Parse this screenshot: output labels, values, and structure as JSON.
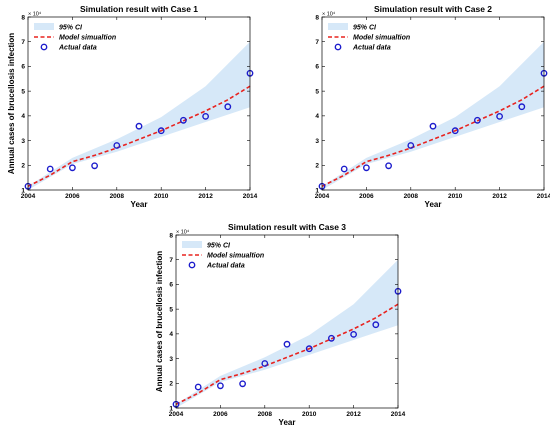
{
  "chart_data": [
    {
      "type": "line",
      "title": "Simulation result with Case 1",
      "xlabel": "Year",
      "ylabel": "Annual cases of brucellosis infection",
      "y_multiplier": "× 10⁴",
      "xlim": [
        2004,
        2014
      ],
      "ylim": [
        1,
        8
      ],
      "xticks": [
        "2004",
        "2006",
        "2008",
        "2010",
        "2012",
        "2014"
      ],
      "yticks": [
        "1",
        "2",
        "3",
        "4",
        "5",
        "6",
        "7",
        "8"
      ],
      "grid": false,
      "legend_position": "top-left",
      "series": [
        {
          "name": "95% CI",
          "kind": "band",
          "color": "#d6e8f8",
          "x": [
            2004,
            2006,
            2008,
            2010,
            2012,
            2014
          ],
          "lower": [
            1.0,
            2.05,
            2.55,
            3.15,
            3.75,
            4.35
          ],
          "upper": [
            1.15,
            2.3,
            3.05,
            3.95,
            5.2,
            7.0
          ]
        },
        {
          "name": "Model simualtion",
          "kind": "line",
          "color": "#e8231f",
          "x": [
            2004,
            2005,
            2006,
            2007,
            2008,
            2009,
            2010,
            2011,
            2012,
            2013,
            2014
          ],
          "y": [
            1.15,
            1.6,
            2.15,
            2.4,
            2.7,
            3.05,
            3.4,
            3.8,
            4.2,
            4.65,
            5.2
          ]
        },
        {
          "name": "Actual data",
          "kind": "scatter",
          "color": "#1c1ccc",
          "x": [
            2004,
            2005,
            2006,
            2007,
            2008,
            2009,
            2010,
            2011,
            2012,
            2013,
            2014
          ],
          "y": [
            1.15,
            1.85,
            1.9,
            1.98,
            2.8,
            3.58,
            3.4,
            3.82,
            3.98,
            4.37,
            5.72
          ]
        }
      ]
    },
    {
      "type": "line",
      "title": "Simulation result with Case 2",
      "xlabel": "Year",
      "ylabel": "",
      "y_multiplier": "× 10⁴",
      "xlim": [
        2004,
        2014
      ],
      "ylim": [
        1,
        8
      ],
      "xticks": [
        "2004",
        "2006",
        "2008",
        "2010",
        "2012",
        "2014"
      ],
      "yticks": [
        "1",
        "2",
        "3",
        "4",
        "5",
        "6",
        "7",
        "8"
      ],
      "grid": false,
      "legend_position": "top-left",
      "series": [
        {
          "name": "95% CI",
          "kind": "band",
          "color": "#d6e8f8",
          "x": [
            2004,
            2006,
            2008,
            2010,
            2012,
            2014
          ],
          "lower": [
            1.0,
            2.05,
            2.55,
            3.15,
            3.75,
            4.35
          ],
          "upper": [
            1.15,
            2.3,
            3.05,
            3.95,
            5.2,
            7.0
          ]
        },
        {
          "name": "Model simualtion",
          "kind": "line",
          "color": "#e8231f",
          "x": [
            2004,
            2005,
            2006,
            2007,
            2008,
            2009,
            2010,
            2011,
            2012,
            2013,
            2014
          ],
          "y": [
            1.15,
            1.6,
            2.15,
            2.4,
            2.7,
            3.05,
            3.4,
            3.8,
            4.2,
            4.65,
            5.2
          ]
        },
        {
          "name": "Actual data",
          "kind": "scatter",
          "color": "#1c1ccc",
          "x": [
            2004,
            2005,
            2006,
            2007,
            2008,
            2009,
            2010,
            2011,
            2012,
            2013,
            2014
          ],
          "y": [
            1.15,
            1.85,
            1.9,
            1.98,
            2.8,
            3.58,
            3.4,
            3.82,
            3.98,
            4.37,
            5.72
          ]
        }
      ]
    },
    {
      "type": "line",
      "title": "Simulation result with Case 3",
      "xlabel": "Year",
      "ylabel": "Annual cases of brucellosis infection",
      "y_multiplier": "× 10⁴",
      "xlim": [
        2004,
        2014
      ],
      "ylim": [
        1,
        8
      ],
      "xticks": [
        "2004",
        "2006",
        "2008",
        "2010",
        "2012",
        "2014"
      ],
      "yticks": [
        "1",
        "2",
        "3",
        "4",
        "5",
        "6",
        "7",
        "8"
      ],
      "grid": false,
      "legend_position": "top-left",
      "series": [
        {
          "name": "95% CI",
          "kind": "band",
          "color": "#d6e8f8",
          "x": [
            2004,
            2006,
            2008,
            2010,
            2012,
            2014
          ],
          "lower": [
            1.0,
            2.05,
            2.55,
            3.15,
            3.75,
            4.35
          ],
          "upper": [
            1.15,
            2.3,
            3.05,
            3.95,
            5.2,
            7.0
          ]
        },
        {
          "name": "Model simualtion",
          "kind": "line",
          "color": "#e8231f",
          "x": [
            2004,
            2005,
            2006,
            2007,
            2008,
            2009,
            2010,
            2011,
            2012,
            2013,
            2014
          ],
          "y": [
            1.15,
            1.6,
            2.15,
            2.4,
            2.7,
            3.05,
            3.4,
            3.8,
            4.2,
            4.65,
            5.2
          ]
        },
        {
          "name": "Actual data",
          "kind": "scatter",
          "color": "#1c1ccc",
          "x": [
            2004,
            2005,
            2006,
            2007,
            2008,
            2009,
            2010,
            2011,
            2012,
            2013,
            2014
          ],
          "y": [
            1.15,
            1.85,
            1.9,
            1.98,
            2.8,
            3.58,
            3.4,
            3.82,
            3.98,
            4.37,
            5.72
          ]
        }
      ]
    }
  ]
}
